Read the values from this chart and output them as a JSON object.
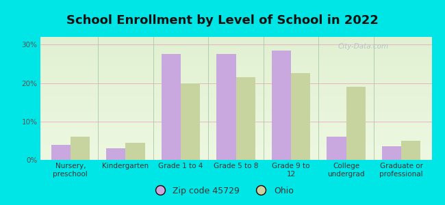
{
  "title": "School Enrollment by Level of School in 2022",
  "categories": [
    "Nursery,\npreschool",
    "Kindergarten",
    "Grade 1 to 4",
    "Grade 5 to 8",
    "Grade 9 to\n12",
    "College\nundergrad",
    "Graduate or\nprofessional"
  ],
  "zip_values": [
    4.0,
    3.0,
    27.5,
    27.5,
    28.5,
    6.0,
    3.5
  ],
  "ohio_values": [
    6.0,
    4.5,
    20.0,
    21.5,
    22.5,
    19.0,
    5.0
  ],
  "zip_color": "#c9a8e0",
  "ohio_color": "#c8d4a0",
  "background_color": "#00e5e5",
  "ylim": [
    0,
    32
  ],
  "yticks": [
    0,
    10,
    20,
    30
  ],
  "ytick_labels": [
    "0%",
    "10%",
    "20%",
    "30%"
  ],
  "title_fontsize": 13,
  "tick_fontsize": 7.5,
  "legend_fontsize": 9,
  "bar_width": 0.35,
  "watermark_text": "City-Data.com",
  "zip_label": "Zip code 45729",
  "ohio_label": "Ohio"
}
